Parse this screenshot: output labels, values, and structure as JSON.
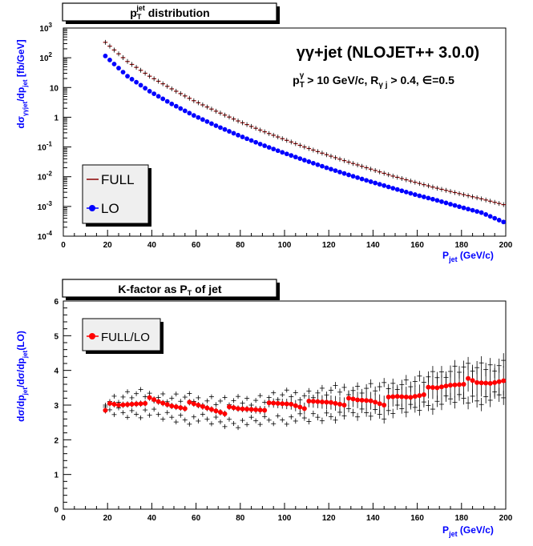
{
  "chart_data": [
    {
      "type": "scatter",
      "title": "p_T^jet distribution",
      "title_main": "p",
      "title_sub": "T",
      "title_sup": "jet",
      "title_rest": " distribution",
      "annotation": "γγ+jet (NLOJET++ 3.0.0)",
      "cuts": {
        "p": "p",
        "p_sub": "T",
        "p_sup": "γ",
        "mid": " > 10 GeV/c, R",
        "r_sub": "γ j",
        "end": " > 0.4, ∈=0.5"
      },
      "xlabel": {
        "main": "P",
        "sub": "jet",
        "rest": " (GeV/c)"
      },
      "ylabel": {
        "pre": "dσ",
        "sub1": "γγjet",
        "mid": "/dp",
        "sub2": "jet",
        "rest": " [fb/GeV]"
      },
      "xlim": [
        0,
        200
      ],
      "ylim_log10": [
        -4,
        3
      ],
      "yscale": "log",
      "xticks": [
        "0",
        "20",
        "40",
        "60",
        "80",
        "100",
        "120",
        "140",
        "160",
        "180",
        "200"
      ],
      "yticks": [
        {
          "base": "10",
          "exp": "-4"
        },
        {
          "base": "10",
          "exp": "-3"
        },
        {
          "base": "10",
          "exp": "-2"
        },
        {
          "base": "10",
          "exp": "-1"
        },
        {
          "base": "1",
          "exp": ""
        },
        {
          "base": "10",
          "exp": ""
        },
        {
          "base": "10",
          "exp": "2"
        },
        {
          "base": "10",
          "exp": "3"
        }
      ],
      "legend_position": "bottom-left",
      "series": [
        {
          "name": "FULL",
          "color": "#8b0000",
          "marker": "errorbar-line",
          "x": [
            19,
            29,
            39,
            49,
            59,
            69,
            79,
            89,
            99,
            109,
            119,
            129,
            139,
            149,
            159,
            169,
            179,
            189,
            199
          ],
          "y": [
            330,
            75,
            24,
            9.0,
            3.6,
            1.6,
            0.75,
            0.37,
            0.19,
            0.1,
            0.055,
            0.031,
            0.018,
            0.0105,
            0.0065,
            0.0041,
            0.0027,
            0.0018,
            0.00115
          ]
        },
        {
          "name": "LO",
          "color": "#0000ff",
          "marker": "circle",
          "x": [
            19,
            29,
            39,
            49,
            59,
            69,
            79,
            89,
            99,
            109,
            119,
            129,
            139,
            149,
            159,
            169,
            179,
            189,
            199
          ],
          "y": [
            115,
            24,
            7.5,
            2.8,
            1.15,
            0.52,
            0.25,
            0.125,
            0.066,
            0.036,
            0.02,
            0.0115,
            0.0068,
            0.0041,
            0.0025,
            0.0016,
            0.00098,
            0.00062,
            0.0003
          ]
        }
      ]
    },
    {
      "type": "scatter",
      "title_main": "K-factor as P",
      "title_sub": "T",
      "title_rest": " of jet",
      "xlabel": {
        "main": "P",
        "sub": "jet",
        "rest": " (GeV/c)"
      },
      "ylabel": {
        "pre": "dσ/dp",
        "sub1": "jet",
        "mid": "/dσ/dp",
        "sub2": "jet",
        "rest": "(LO)"
      },
      "xlim": [
        0,
        200
      ],
      "ylim": [
        0,
        6
      ],
      "xticks": [
        "0",
        "20",
        "40",
        "60",
        "80",
        "100",
        "120",
        "140",
        "160",
        "180",
        "200"
      ],
      "yticks": [
        "0",
        "1",
        "2",
        "3",
        "4",
        "5",
        "6"
      ],
      "legend_position": "top-left",
      "series": [
        {
          "name": "FULL/LO",
          "color": "#ff0000",
          "marker": "circle",
          "x": [
            19,
            25,
            31,
            37,
            43,
            49,
            55,
            61,
            67,
            73,
            79,
            85,
            91,
            97,
            103,
            109,
            115,
            121,
            127,
            133,
            139,
            145,
            151,
            157,
            163,
            169,
            175,
            181,
            187,
            193,
            199
          ],
          "y": [
            2.95,
            2.95,
            3.05,
            3.15,
            3.05,
            3.0,
            3.0,
            2.95,
            2.9,
            2.85,
            2.85,
            2.9,
            2.95,
            3.0,
            3.05,
            3.0,
            3.05,
            3.1,
            3.1,
            3.1,
            3.15,
            3.1,
            3.2,
            3.25,
            3.4,
            3.45,
            3.6,
            3.7,
            3.6,
            3.65,
            3.8
          ]
        }
      ],
      "band": {
        "x": [
          19,
          25,
          31,
          37,
          43,
          49,
          55,
          61,
          67,
          73,
          79,
          85,
          91,
          97,
          103,
          109,
          115,
          121,
          127,
          133,
          139,
          145,
          151,
          157,
          163,
          169,
          175,
          181,
          187,
          193,
          199
        ],
        "upper": [
          3.1,
          3.2,
          3.3,
          3.3,
          3.25,
          3.2,
          3.2,
          3.15,
          3.15,
          3.1,
          3.1,
          3.15,
          3.2,
          3.25,
          3.3,
          3.3,
          3.35,
          3.4,
          3.45,
          3.45,
          3.5,
          3.5,
          3.6,
          3.65,
          3.75,
          3.85,
          4.0,
          4.1,
          4.05,
          4.1,
          4.2
        ],
        "lower": [
          2.85,
          2.8,
          2.75,
          2.8,
          2.7,
          2.65,
          2.6,
          2.6,
          2.55,
          2.5,
          2.5,
          2.5,
          2.55,
          2.6,
          2.6,
          2.6,
          2.65,
          2.7,
          2.75,
          2.75,
          2.8,
          2.75,
          2.85,
          2.9,
          3.0,
          3.05,
          3.15,
          3.2,
          3.15,
          3.2,
          3.3
        ]
      }
    }
  ]
}
